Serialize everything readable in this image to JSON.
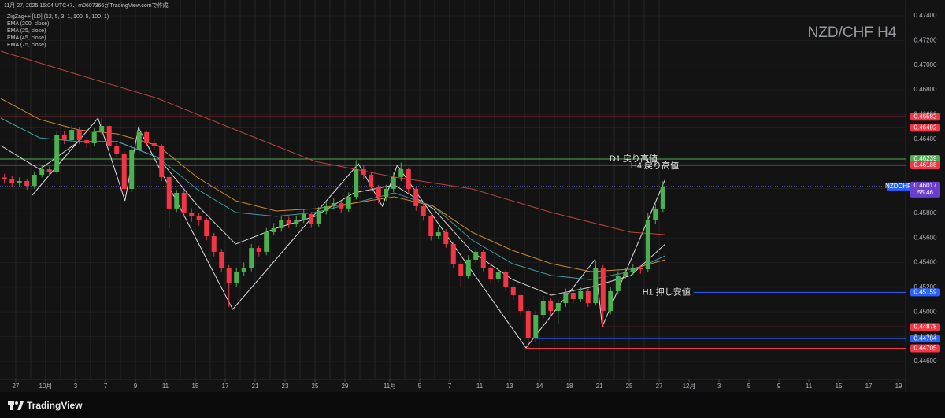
{
  "header": {
    "caption": "11月 27, 2025 16:04 UTC+7、m0607366がTradingView.comで作成"
  },
  "footer": {
    "brand": "TradingView"
  },
  "chart_data": {
    "type": "candlestick",
    "title": "NZD/CHF H4",
    "symbol": "NZDCHF",
    "last_price": 0.46017,
    "countdown": "55:46",
    "up_color": "#4caf50",
    "down_color": "#f23645",
    "xlim": [
      -1.05,
      59.47
    ],
    "ylim": [
      0.44415,
      0.47464
    ],
    "xticks": [
      {
        "value": 0,
        "label": "27"
      },
      {
        "value": 2,
        "label": "10月"
      },
      {
        "value": 4,
        "label": "3"
      },
      {
        "value": 6,
        "label": "7"
      },
      {
        "value": 8,
        "label": "9"
      },
      {
        "value": 10,
        "label": "11"
      },
      {
        "value": 12,
        "label": "15"
      },
      {
        "value": 14,
        "label": "17"
      },
      {
        "value": 16,
        "label": "21"
      },
      {
        "value": 18,
        "label": "23"
      },
      {
        "value": 20,
        "label": "25"
      },
      {
        "value": 22,
        "label": "29"
      },
      {
        "value": 25,
        "label": "11月"
      },
      {
        "value": 27,
        "label": "5"
      },
      {
        "value": 29,
        "label": "7"
      },
      {
        "value": 31,
        "label": "11"
      },
      {
        "value": 33,
        "label": "13"
      },
      {
        "value": 35,
        "label": "14"
      },
      {
        "value": 37,
        "label": "18"
      },
      {
        "value": 39,
        "label": "21"
      },
      {
        "value": 41,
        "label": "25"
      },
      {
        "value": 43,
        "label": "27"
      },
      {
        "value": 45,
        "label": "12月"
      },
      {
        "value": 47,
        "label": "3"
      },
      {
        "value": 49,
        "label": "5"
      },
      {
        "value": 51,
        "label": "9"
      },
      {
        "value": 53,
        "label": "11"
      },
      {
        "value": 55,
        "label": "15"
      },
      {
        "value": 57,
        "label": "17"
      },
      {
        "value": 59,
        "label": "19"
      }
    ],
    "yticks": [
      {
        "value": 0.474,
        "label": "0.47400"
      },
      {
        "value": 0.472,
        "label": "0.47200"
      },
      {
        "value": 0.47,
        "label": "0.47000"
      },
      {
        "value": 0.468,
        "label": "0.46800"
      },
      {
        "value": 0.466,
        "label": "0.46600"
      },
      {
        "value": 0.464,
        "label": "0.46400"
      },
      {
        "value": 0.462,
        "label": "0.46200"
      },
      {
        "value": 0.46,
        "label": "0.46000"
      },
      {
        "value": 0.458,
        "label": "0.45800"
      },
      {
        "value": 0.456,
        "label": "0.45600"
      },
      {
        "value": 0.454,
        "label": "0.45400"
      },
      {
        "value": 0.452,
        "label": "0.45200"
      },
      {
        "value": 0.45,
        "label": "0.45000"
      },
      {
        "value": 0.448,
        "label": "0.44800"
      },
      {
        "value": 0.446,
        "label": "0.44600"
      }
    ],
    "x": [
      -0.75,
      -0.25,
      0.25,
      0.75,
      1.25,
      1.75,
      2.25,
      2.75,
      3.25,
      3.75,
      4.25,
      4.75,
      5.25,
      5.75,
      6.25,
      6.75,
      7.25,
      7.75,
      8.25,
      8.75,
      9.25,
      9.75,
      10.25,
      10.75,
      11.25,
      11.75,
      12.25,
      12.75,
      13.25,
      13.75,
      14.25,
      14.75,
      15.25,
      15.75,
      16.25,
      16.75,
      17.25,
      17.75,
      18.25,
      18.75,
      19.25,
      19.75,
      20.25,
      20.75,
      21.25,
      21.75,
      22.25,
      22.75,
      23.25,
      23.75,
      24.25,
      24.75,
      25.25,
      25.75,
      26.25,
      26.75,
      27.25,
      27.75,
      28.25,
      28.75,
      29.25,
      29.75,
      30.25,
      30.75,
      31.25,
      31.75,
      32.25,
      32.75,
      33.25,
      33.75,
      34.25,
      34.75,
      35.25,
      35.75,
      36.25,
      36.75,
      37.25,
      37.75,
      38.25,
      38.75,
      39.25,
      39.75,
      40.25,
      40.75,
      41.25,
      41.75,
      42.25,
      42.75,
      43.25
    ],
    "open": [
      0.4609,
      0.46073,
      0.46048,
      0.46061,
      0.46022,
      0.46112,
      0.46156,
      0.46137,
      0.46431,
      0.46392,
      0.46475,
      0.46392,
      0.46367,
      0.46456,
      0.46507,
      0.46348,
      0.46284,
      0.45997,
      0.46316,
      0.46456,
      0.46367,
      0.46348,
      0.46093,
      0.45838,
      0.45965,
      0.45806,
      0.45774,
      0.45742,
      0.45614,
      0.45487,
      0.45359,
      0.45232,
      0.45327,
      0.45359,
      0.45518,
      0.45487,
      0.45646,
      0.45678,
      0.45742,
      0.4571,
      0.45742,
      0.45793,
      0.4571,
      0.45818,
      0.45857,
      0.45882,
      0.45838,
      0.45933,
      0.46156,
      0.46112,
      0.4601,
      0.45933,
      0.45997,
      0.46093,
      0.46156,
      0.45997,
      0.45857,
      0.45774,
      0.45614,
      0.45646,
      0.4555,
      0.45391,
      0.45295,
      0.45423,
      0.45487,
      0.45359,
      0.45263,
      0.45327,
      0.452,
      0.45136,
      0.45008,
      0.44785,
      0.44976,
      0.45091,
      0.45008,
      0.45072,
      0.45155,
      0.45104,
      0.45168,
      0.45072,
      0.45359,
      0.45008,
      0.45168,
      0.45295,
      0.45327,
      0.45359,
      0.45346,
      0.45742,
      0.45838
    ],
    "high": [
      0.4612,
      0.461,
      0.4609,
      0.4608,
      0.4614,
      0.4619,
      0.4618,
      0.4646,
      0.4647,
      0.4651,
      0.465,
      0.4642,
      0.4649,
      0.46571,
      0.4652,
      0.4637,
      0.463,
      0.4635,
      0.4651,
      0.4647,
      0.464,
      0.4636,
      0.4611,
      0.4599,
      0.4598,
      0.4584,
      0.458,
      0.4576,
      0.4564,
      0.4551,
      0.4538,
      0.4536,
      0.454,
      0.4555,
      0.4554,
      0.4568,
      0.4572,
      0.4578,
      0.4577,
      0.4578,
      0.4583,
      0.4581,
      0.4585,
      0.4589,
      0.4592,
      0.459,
      0.4597,
      0.4623,
      0.4619,
      0.4613,
      0.4603,
      0.4603,
      0.4613,
      0.4621,
      0.4617,
      0.4601,
      0.4588,
      0.4579,
      0.4569,
      0.4567,
      0.4557,
      0.4541,
      0.4546,
      0.4552,
      0.455,
      0.4538,
      0.4536,
      0.4534,
      0.4522,
      0.4515,
      0.4502,
      0.4501,
      0.4513,
      0.4511,
      0.451,
      0.4519,
      0.4517,
      0.452,
      0.4519,
      0.4542,
      0.4538,
      0.452,
      0.4533,
      0.4536,
      0.4539,
      0.4538,
      0.458,
      0.4588,
      0.4606
    ],
    "low": [
      0.4604,
      0.4601,
      0.4602,
      0.4599,
      0.46,
      0.4609,
      0.461,
      0.4612,
      0.4636,
      0.4637,
      0.4636,
      0.4633,
      0.4634,
      0.4643,
      0.4632,
      0.4625,
      0.4594,
      0.4597,
      0.4629,
      0.4634,
      0.4631,
      0.4606,
      0.4568,
      0.4581,
      0.4577,
      0.4573,
      0.457,
      0.4558,
      0.4545,
      0.4532,
      0.4504,
      0.452,
      0.4529,
      0.4533,
      0.4545,
      0.4546,
      0.4562,
      0.4565,
      0.4568,
      0.4569,
      0.4572,
      0.4568,
      0.4569,
      0.4579,
      0.4583,
      0.458,
      0.4581,
      0.4591,
      0.4608,
      0.4598,
      0.4588,
      0.459,
      0.4597,
      0.4606,
      0.4596,
      0.4582,
      0.4574,
      0.4558,
      0.4559,
      0.4552,
      0.4536,
      0.452,
      0.4527,
      0.454,
      0.4533,
      0.4523,
      0.4524,
      0.4517,
      0.451,
      0.4497,
      0.44705,
      0.4476,
      0.4495,
      0.4497,
      0.449,
      0.4504,
      0.4507,
      0.4508,
      0.4504,
      0.4505,
      0.44878,
      0.4498,
      0.4514,
      0.4527,
      0.453,
      0.4531,
      0.4532,
      0.4571,
      0.4581
    ],
    "close": [
      0.46073,
      0.46048,
      0.46061,
      0.46022,
      0.46112,
      0.46156,
      0.46137,
      0.46431,
      0.46392,
      0.46475,
      0.46392,
      0.46367,
      0.46456,
      0.46507,
      0.46348,
      0.46284,
      0.45997,
      0.46316,
      0.46456,
      0.46367,
      0.46348,
      0.46093,
      0.45838,
      0.45965,
      0.45806,
      0.45774,
      0.45742,
      0.45614,
      0.45487,
      0.45359,
      0.45232,
      0.45327,
      0.45359,
      0.45518,
      0.45487,
      0.45646,
      0.45678,
      0.45742,
      0.4571,
      0.45742,
      0.45793,
      0.4571,
      0.45818,
      0.45857,
      0.45882,
      0.45838,
      0.45933,
      0.46156,
      0.46112,
      0.4601,
      0.45933,
      0.45997,
      0.46093,
      0.46156,
      0.45997,
      0.45857,
      0.45774,
      0.45614,
      0.45646,
      0.4555,
      0.45391,
      0.45295,
      0.45423,
      0.45487,
      0.45359,
      0.45263,
      0.45327,
      0.452,
      0.45136,
      0.45008,
      0.44785,
      0.44976,
      0.45091,
      0.45008,
      0.45072,
      0.45155,
      0.45104,
      0.45168,
      0.45072,
      0.45359,
      0.45008,
      0.45168,
      0.45295,
      0.45327,
      0.45359,
      0.45346,
      0.45742,
      0.45838,
      0.46017
    ],
    "series": [
      {
        "name": "ZigZag++ [LD] (12, 5, 3, 1, 100, 5, 100, 1)",
        "color": "#e0e0e0",
        "x": [
          1.1,
          5.5,
          7.3,
          8.2,
          14.5,
          22.9,
          24.5,
          25.5,
          34.1,
          38.7,
          39.2,
          43.4
        ],
        "values": [
          0.45946,
          0.46571,
          0.45901,
          0.46494,
          0.45021,
          0.46201,
          0.45857,
          0.46188,
          0.44709,
          0.45423,
          0.44881,
          0.46073
        ]
      },
      {
        "name": "EMA (200, close)",
        "color": "#b8443f",
        "x": [
          -1,
          4.2,
          9.5,
          14.7,
          20,
          25.3,
          30.5,
          35.8,
          41.1,
          43.4
        ],
        "values": [
          0.47113,
          0.46922,
          0.4673,
          0.46475,
          0.4622,
          0.46093,
          0.45997,
          0.45806,
          0.45646,
          0.45627
        ]
      },
      {
        "name": "EMA (25, close)",
        "color": "#d8d8d8",
        "x": [
          -1,
          1.6,
          4.2,
          6.8,
          9.5,
          12.1,
          14.7,
          17.4,
          20,
          22.6,
          25.3,
          27.9,
          30.5,
          33.2,
          35.8,
          38.4,
          41.1,
          43.4
        ],
        "values": [
          0.46348,
          0.46156,
          0.4638,
          0.4638,
          0.46252,
          0.45869,
          0.4555,
          0.45678,
          0.45774,
          0.45965,
          0.46029,
          0.45837,
          0.45487,
          0.45263,
          0.45136,
          0.452,
          0.45295,
          0.4555
        ]
      },
      {
        "name": "EMA (45, close)",
        "color": "#3e9aa3",
        "x": [
          -1,
          1.6,
          4.2,
          6.8,
          9.5,
          12.1,
          14.7,
          17.4,
          20,
          22.6,
          25.3,
          27.9,
          30.5,
          33.2,
          35.8,
          38.4,
          41.1,
          43.4
        ],
        "values": [
          0.46571,
          0.46411,
          0.4638,
          0.4638,
          0.46252,
          0.45997,
          0.45806,
          0.45774,
          0.45806,
          0.45882,
          0.45965,
          0.45857,
          0.45582,
          0.45391,
          0.45295,
          0.45263,
          0.45327,
          0.45455
        ]
      },
      {
        "name": "EMA (75, close)",
        "color": "#c88a2e",
        "x": [
          -1,
          1.6,
          4.2,
          6.8,
          9.5,
          12.1,
          14.7,
          17.4,
          20,
          22.6,
          25.3,
          27.9,
          30.5,
          33.2,
          35.8,
          38.4,
          41.1,
          43.4
        ],
        "values": [
          0.4673,
          0.4656,
          0.46475,
          0.46443,
          0.46348,
          0.46093,
          0.45901,
          0.45818,
          0.45837,
          0.45882,
          0.45933,
          0.45857,
          0.45646,
          0.45499,
          0.45391,
          0.45327,
          0.45346,
          0.45423
        ]
      }
    ],
    "levels": [
      {
        "value": 0.46582,
        "color": "#f23645"
      },
      {
        "value": 0.46492,
        "color": "#f23645"
      },
      {
        "value": 0.46239,
        "color": "#4caf50",
        "label": "D1 戻り高値"
      },
      {
        "value": 0.46188,
        "color": "#f23645",
        "label": "H4 戻り高値"
      },
      {
        "value": 0.45159,
        "color": "#2962ff",
        "label": "H1 押し安値",
        "from": 45.3
      },
      {
        "value": 0.44878,
        "color": "#f23645",
        "from": 39.2
      },
      {
        "value": 0.44784,
        "color": "#2962ff",
        "from": 34.7
      },
      {
        "value": 0.44705,
        "color": "#f23645",
        "from": 34.1
      }
    ]
  }
}
